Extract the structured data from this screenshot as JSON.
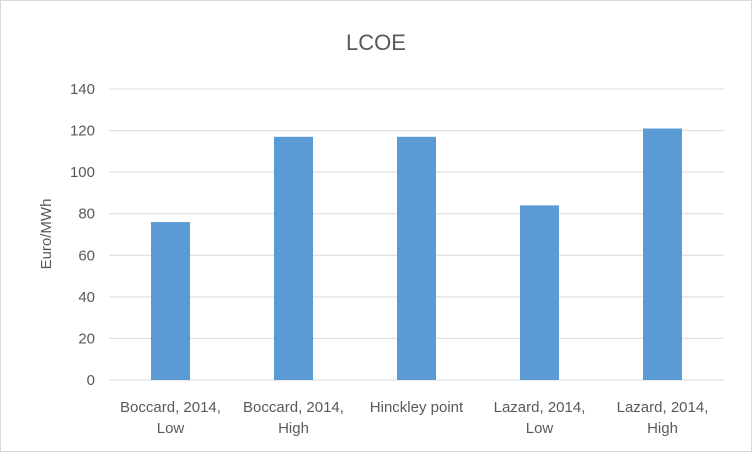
{
  "chart_data": {
    "type": "bar",
    "title": "LCOE",
    "ylabel": "Euro/MWh",
    "xlabel": "",
    "categories": [
      [
        "Boccard, 2014,",
        "Low"
      ],
      [
        "Boccard, 2014,",
        "High"
      ],
      [
        "Hinckley point"
      ],
      [
        "Lazard, 2014,",
        "Low"
      ],
      [
        "Lazard, 2014,",
        "High"
      ]
    ],
    "values": [
      76,
      117,
      117,
      84,
      121
    ],
    "ylim": [
      0,
      140
    ],
    "yticks": [
      0,
      20,
      40,
      60,
      80,
      100,
      120,
      140
    ],
    "grid": true,
    "legend": "none",
    "bar_color": "#5b9bd5"
  }
}
